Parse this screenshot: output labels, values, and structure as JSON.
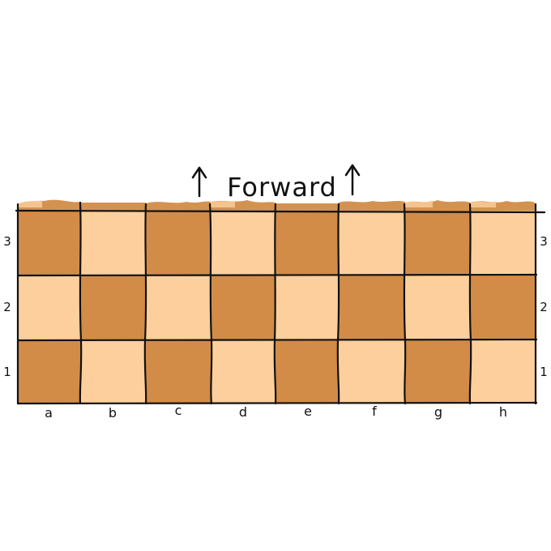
{
  "board": {
    "title": "Forward",
    "arrow_glyph": "↑",
    "files": [
      "a",
      "b",
      "c",
      "d",
      "e",
      "f",
      "g",
      "h"
    ],
    "ranks": [
      "3",
      "2",
      "1"
    ],
    "colors": {
      "light": "#fccf9c",
      "dark": "#d28c48",
      "line": "#111111",
      "background": "#ffffff"
    },
    "squares": [
      [
        "dark",
        "light",
        "dark",
        "light",
        "dark",
        "light",
        "dark",
        "light"
      ],
      [
        "light",
        "dark",
        "light",
        "dark",
        "light",
        "dark",
        "light",
        "dark"
      ],
      [
        "dark",
        "light",
        "dark",
        "light",
        "dark",
        "light",
        "dark",
        "light"
      ]
    ]
  }
}
